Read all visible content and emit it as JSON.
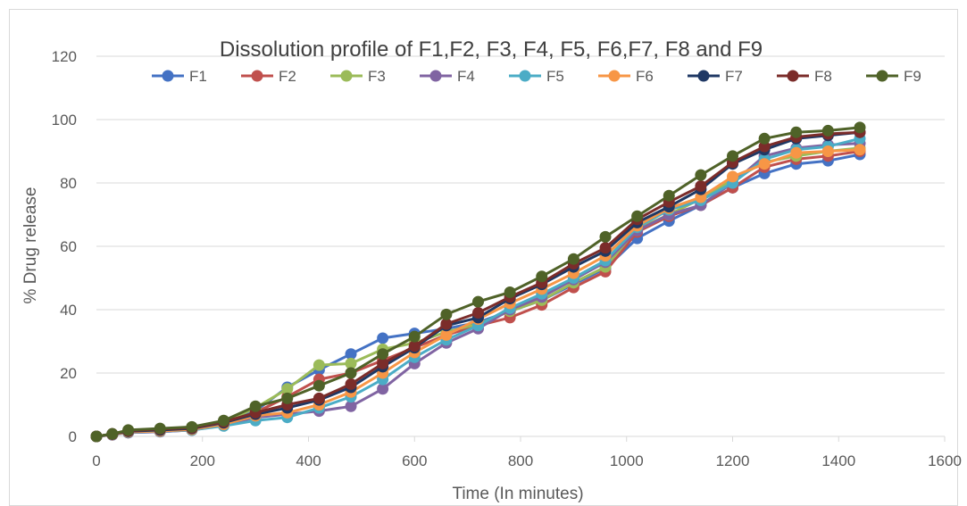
{
  "chart_data": {
    "type": "line",
    "title": "Dissolution profile of F1,F2, F3, F4, F5, F6,F7, F8 and F9",
    "xlabel": "Time (In minutes)",
    "ylabel": "% Drug release",
    "xlim": [
      0,
      1600
    ],
    "ylim": [
      0,
      120
    ],
    "xticks": [
      "0",
      "200",
      "400",
      "600",
      "800",
      "1000",
      "1200",
      "1400",
      "1600"
    ],
    "yticks": [
      "0",
      "20",
      "40",
      "60",
      "80",
      "100",
      "120"
    ],
    "grid": "horizontal",
    "legend": "top",
    "x": [
      0,
      30,
      60,
      120,
      180,
      240,
      300,
      360,
      420,
      480,
      540,
      600,
      660,
      720,
      780,
      840,
      900,
      960,
      1020,
      1080,
      1140,
      1200,
      1260,
      1320,
      1380,
      1440
    ],
    "series": [
      {
        "name": "F1",
        "color": "#4472C4",
        "values": [
          0,
          0.5,
          1.2,
          1.5,
          2,
          4,
          8,
          15.5,
          21,
          26,
          31,
          32.5,
          34,
          36,
          39.5,
          43,
          48,
          53,
          62.5,
          68,
          73,
          78.5,
          83,
          86,
          87,
          89
        ]
      },
      {
        "name": "F2",
        "color": "#C0504D",
        "values": [
          0,
          0.6,
          1.4,
          1.8,
          2.3,
          4.2,
          7.5,
          12.5,
          18,
          20,
          24,
          28,
          32,
          35,
          37.5,
          41.5,
          47,
          52,
          64.5,
          69.5,
          73,
          78.5,
          85,
          87.5,
          88.5,
          90
        ]
      },
      {
        "name": "F3",
        "color": "#9BBB59",
        "values": [
          0,
          0.7,
          1.5,
          2,
          2.5,
          4.5,
          9,
          15,
          22.5,
          23,
          27.5,
          29.5,
          33,
          35.5,
          39.5,
          43,
          48.5,
          53.5,
          65.5,
          70,
          75,
          81,
          86.5,
          88.5,
          90,
          91
        ]
      },
      {
        "name": "F4",
        "color": "#8064A2",
        "values": [
          0,
          0.5,
          1.2,
          1.5,
          2,
          3.5,
          6,
          7,
          8,
          9.5,
          15,
          23,
          29.5,
          34,
          40,
          44,
          49.5,
          55,
          65,
          70,
          73,
          80,
          88.5,
          91,
          92,
          92.5
        ]
      },
      {
        "name": "F5",
        "color": "#4BACC6",
        "values": [
          0,
          0.6,
          1.3,
          1.6,
          2,
          3.3,
          5,
          6,
          9,
          12.5,
          18,
          25,
          30.5,
          35,
          40.5,
          45,
          50,
          55.5,
          66,
          71.5,
          74.5,
          80,
          87.5,
          90.5,
          91.5,
          94
        ]
      },
      {
        "name": "F6",
        "color": "#F79646",
        "values": [
          0,
          0.6,
          1.4,
          1.7,
          2.2,
          3.8,
          6.5,
          7.5,
          10,
          14,
          20,
          26.5,
          32,
          37,
          42,
          46.5,
          51.5,
          57,
          66.5,
          72,
          75.5,
          82,
          86,
          89.5,
          90,
          90.5
        ]
      },
      {
        "name": "F7",
        "color": "#1F3864",
        "values": [
          0,
          0.7,
          1.6,
          2,
          2.5,
          4.3,
          7,
          9,
          11.5,
          15.5,
          22,
          28,
          35,
          37.5,
          43.5,
          48,
          53.5,
          58.5,
          67.5,
          72.5,
          78,
          86,
          90.5,
          94,
          95,
          96
        ]
      },
      {
        "name": "F8",
        "color": "#7B2C2A",
        "values": [
          0,
          0.8,
          1.8,
          2.3,
          2.7,
          4.6,
          7.5,
          10,
          12,
          16.5,
          23,
          28.5,
          35.5,
          39,
          44,
          48.5,
          54.5,
          59.5,
          68.5,
          74,
          79,
          86.5,
          91.5,
          94.5,
          95.5,
          96
        ]
      },
      {
        "name": "F9",
        "color": "#4F6228",
        "values": [
          0,
          0.8,
          2,
          2.5,
          3,
          5,
          9.5,
          12,
          16,
          20,
          26,
          31.5,
          38.5,
          42.5,
          45.5,
          50.5,
          56,
          63,
          69.5,
          76,
          82.5,
          88.5,
          94,
          96,
          96.5,
          97.5
        ]
      }
    ]
  }
}
